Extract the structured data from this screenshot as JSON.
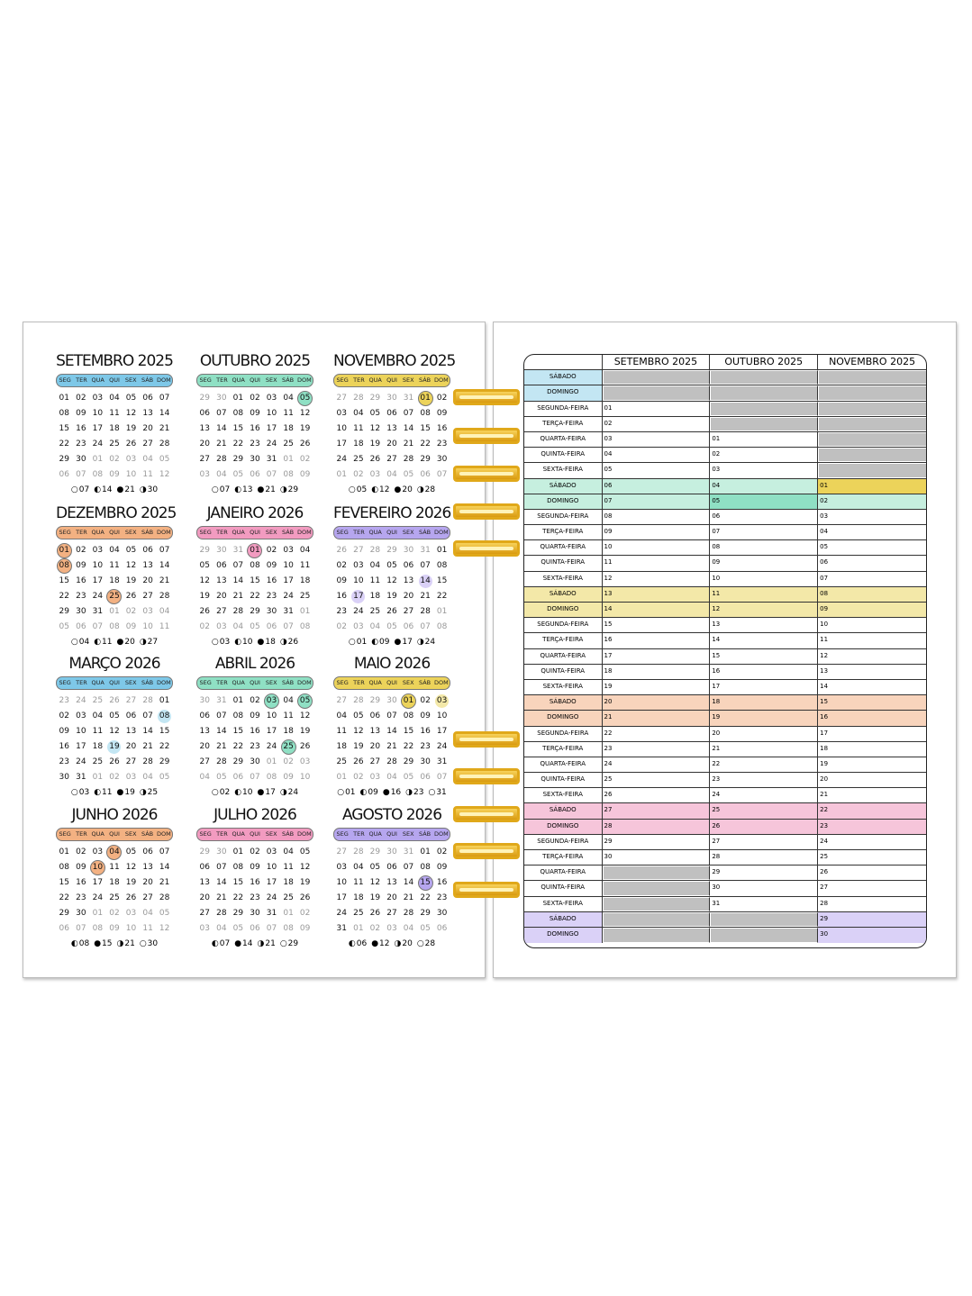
{
  "weekdays": [
    "SEG",
    "TER",
    "QUA",
    "QUI",
    "SEX",
    "SÁB",
    "DOM"
  ],
  "colors": {
    "blue": [
      "#7ec8e8",
      "#c3e6f3"
    ],
    "green": [
      "#8fe0c4",
      "#c6efdf"
    ],
    "yellow": [
      "#ecd35a",
      "#f3e8a8"
    ],
    "orange": [
      "#f3b182",
      "#f8d4bc"
    ],
    "pink": [
      "#f29bc0",
      "#f6c5da"
    ],
    "purple": [
      "#b6a6ef",
      "#dad1f7"
    ],
    "gray": "#c0c0c0"
  },
  "moon_icons": {
    "new": "○",
    "first": "◐",
    "full": "●",
    "last": "◑"
  },
  "months": [
    {
      "title": "SETEMBRO 2025",
      "color": "blue",
      "weeks": [
        "01 02 03 04 05 06 07",
        "08 09 10 11 12 13 14",
        "15 16 17 18 19 20 21",
        "22 23 24 25 26 27 28",
        "29 30 01 02 03 04 05",
        "06 07 08 09 10 11 12"
      ],
      "highlights": [],
      "moons": [
        [
          "new",
          "07"
        ],
        [
          "first",
          "14"
        ],
        [
          "full",
          "21"
        ],
        [
          "last",
          "30"
        ]
      ]
    },
    {
      "title": "OUTUBRO 2025",
      "color": "green",
      "weeks": [
        "29 30 01 02 03 04 05",
        "06 07 08 09 10 11 12",
        "13 14 15 16 17 18 19",
        "20 21 22 23 24 25 26",
        "27 28 29 30 31 01 02",
        "03 04 05 06 07 08 09"
      ],
      "highlights": [
        [
          "05",
          "h"
        ]
      ],
      "moons": [
        [
          "new",
          "07"
        ],
        [
          "first",
          "13"
        ],
        [
          "full",
          "21"
        ],
        [
          "last",
          "29"
        ]
      ]
    },
    {
      "title": "NOVEMBRO 2025",
      "color": "yellow",
      "weeks": [
        "27 28 29 30 31 01 02",
        "03 04 05 06 07 08 09",
        "10 11 12 13 14 15 16",
        "17 18 19 20 21 22 23",
        "24 25 26 27 28 29 30",
        "01 02 03 04 05 06 07"
      ],
      "highlights": [
        [
          "01",
          "h"
        ]
      ],
      "moons": [
        [
          "new",
          "05"
        ],
        [
          "first",
          "12"
        ],
        [
          "full",
          "20"
        ],
        [
          "last",
          "28"
        ]
      ]
    },
    {
      "title": "DEZEMBRO 2025",
      "color": "orange",
      "weeks": [
        "01 02 03 04 05 06 07",
        "08 09 10 11 12 13 14",
        "15 16 17 18 19 20 21",
        "22 23 24 25 26 27 28",
        "29 30 31 01 02 03 04",
        "05 06 07 08 09 10 11"
      ],
      "highlights": [
        [
          "01",
          "h"
        ],
        [
          "08",
          "h"
        ],
        [
          "25",
          "h"
        ]
      ],
      "moons": [
        [
          "new",
          "04"
        ],
        [
          "first",
          "11"
        ],
        [
          "full",
          "20"
        ],
        [
          "last",
          "27"
        ]
      ]
    },
    {
      "title": "JANEIRO 2026",
      "color": "pink",
      "weeks": [
        "29 30 31 01 02 03 04",
        "05 06 07 08 09 10 11",
        "12 13 14 15 16 17 18",
        "19 20 21 22 23 24 25",
        "26 27 28 29 30 31 01",
        "02 03 04 05 06 07 08"
      ],
      "highlights": [
        [
          "01",
          "h"
        ]
      ],
      "moons": [
        [
          "new",
          "03"
        ],
        [
          "first",
          "10"
        ],
        [
          "full",
          "18"
        ],
        [
          "last",
          "26"
        ]
      ]
    },
    {
      "title": "FEVEREIRO 2026",
      "color": "purple",
      "weeks": [
        "26 27 28 29 30 31 01",
        "02 03 04 05 06 07 08",
        "09 10 11 12 13 14 15",
        "16 17 18 19 20 21 22",
        "23 24 25 26 27 28 01",
        "02 03 04 05 06 07 08"
      ],
      "highlights": [
        [
          "14",
          "l"
        ],
        [
          "17",
          "l"
        ]
      ],
      "moons": [
        [
          "new",
          "01"
        ],
        [
          "first",
          "09"
        ],
        [
          "full",
          "17"
        ],
        [
          "last",
          "24"
        ]
      ]
    },
    {
      "title": "MARÇO 2026",
      "color": "blue",
      "weeks": [
        "23 24 25 26 27 28 01",
        "02 03 04 05 06 07 08",
        "09 10 11 12 13 14 15",
        "16 17 18 19 20 21 22",
        "23 24 25 26 27 28 29",
        "30 31 01 02 03 04 05"
      ],
      "highlights": [
        [
          "08",
          "l"
        ],
        [
          "19",
          "l"
        ]
      ],
      "moons": [
        [
          "new",
          "03"
        ],
        [
          "first",
          "11"
        ],
        [
          "full",
          "19"
        ],
        [
          "last",
          "25"
        ]
      ]
    },
    {
      "title": "ABRIL 2026",
      "color": "green",
      "weeks": [
        "30 31 01 02 03 04 05",
        "06 07 08 09 10 11 12",
        "13 14 15 16 17 18 19",
        "20 21 22 23 24 25 26",
        "27 28 29 30 01 02 03",
        "04 05 06 07 08 09 10"
      ],
      "highlights": [
        [
          "03",
          "h"
        ],
        [
          "05",
          "h"
        ],
        [
          "25",
          "h"
        ]
      ],
      "moons": [
        [
          "new",
          "02"
        ],
        [
          "first",
          "10"
        ],
        [
          "full",
          "17"
        ],
        [
          "last",
          "24"
        ]
      ]
    },
    {
      "title": "MAIO 2026",
      "color": "yellow",
      "weeks": [
        "27 28 29 30 01 02 03",
        "04 05 06 07 08 09 10",
        "11 12 13 14 15 16 17",
        "18 19 20 21 22 23 24",
        "25 26 27 28 29 30 31",
        "01 02 03 04 05 06 07"
      ],
      "highlights": [
        [
          "01",
          "h"
        ],
        [
          "03",
          "l"
        ]
      ],
      "moons": [
        [
          "new",
          "01"
        ],
        [
          "first",
          "09"
        ],
        [
          "full",
          "16"
        ],
        [
          "last",
          "23"
        ],
        [
          "new",
          "31"
        ]
      ]
    },
    {
      "title": "JUNHO 2026",
      "color": "orange",
      "weeks": [
        "01 02 03 04 05 06 07",
        "08 09 10 11 12 13 14",
        "15 16 17 18 19 20 21",
        "22 23 24 25 26 27 28",
        "29 30 01 02 03 04 05",
        "06 07 08 09 10 11 12"
      ],
      "highlights": [
        [
          "04",
          "h"
        ],
        [
          "10",
          "h"
        ]
      ],
      "moons": [
        [
          "first",
          "08"
        ],
        [
          "full",
          "15"
        ],
        [
          "last",
          "21"
        ],
        [
          "new",
          "30"
        ]
      ]
    },
    {
      "title": "JULHO 2026",
      "color": "pink",
      "weeks": [
        "29 30 01 02 03 04 05",
        "06 07 08 09 10 11 12",
        "13 14 15 16 17 18 19",
        "20 21 22 23 24 25 26",
        "27 28 29 30 31 01 02",
        "03 04 05 06 07 08 09"
      ],
      "highlights": [],
      "moons": [
        [
          "first",
          "07"
        ],
        [
          "full",
          "14"
        ],
        [
          "last",
          "21"
        ],
        [
          "new",
          "29"
        ]
      ]
    },
    {
      "title": "AGOSTO 2026",
      "color": "purple",
      "weeks": [
        "27 28 29 30 31 01 02",
        "03 04 05 06 07 08 09",
        "10 11 12 13 14 15 16",
        "17 18 19 20 21 22 23",
        "24 25 26 27 28 29 30",
        "31 01 02 03 04 05 06"
      ],
      "highlights": [
        [
          "15",
          "h"
        ]
      ],
      "moons": [
        [
          "first",
          "06"
        ],
        [
          "full",
          "12"
        ],
        [
          "last",
          "20"
        ],
        [
          "new",
          "28"
        ]
      ]
    }
  ],
  "table": {
    "columns": [
      "SETEMBRO 2025",
      "OUTUBRO 2025",
      "NOVEMBRO 2025"
    ],
    "highlight_cells": [
      [
        "05",
        1,
        "green"
      ],
      [
        "01",
        2,
        "yellow"
      ]
    ],
    "rows": [
      {
        "label": "SÁBADO",
        "band": "blue",
        "cells": [
          "",
          "",
          ""
        ]
      },
      {
        "label": "DOMINGO",
        "band": "blue",
        "cells": [
          "",
          "",
          ""
        ]
      },
      {
        "label": "SEGUNDA-FEIRA",
        "cells": [
          "01",
          "",
          ""
        ]
      },
      {
        "label": "TERÇA-FEIRA",
        "cells": [
          "02",
          "",
          ""
        ]
      },
      {
        "label": "QUARTA-FEIRA",
        "cells": [
          "03",
          "01",
          ""
        ]
      },
      {
        "label": "QUINTA-FEIRA",
        "cells": [
          "04",
          "02",
          ""
        ]
      },
      {
        "label": "SEXTA-FEIRA",
        "cells": [
          "05",
          "03",
          ""
        ]
      },
      {
        "label": "SÁBADO",
        "band": "green",
        "cells": [
          "06",
          "04",
          "01"
        ]
      },
      {
        "label": "DOMINGO",
        "band": "green",
        "cells": [
          "07",
          "05",
          "02"
        ]
      },
      {
        "label": "SEGUNDA-FEIRA",
        "cells": [
          "08",
          "06",
          "03"
        ]
      },
      {
        "label": "TERÇA-FEIRA",
        "cells": [
          "09",
          "07",
          "04"
        ]
      },
      {
        "label": "QUARTA-FEIRA",
        "cells": [
          "10",
          "08",
          "05"
        ]
      },
      {
        "label": "QUINTA-FEIRA",
        "cells": [
          "11",
          "09",
          "06"
        ]
      },
      {
        "label": "SEXTA-FEIRA",
        "cells": [
          "12",
          "10",
          "07"
        ]
      },
      {
        "label": "SÁBADO",
        "band": "yellow",
        "cells": [
          "13",
          "11",
          "08"
        ]
      },
      {
        "label": "DOMINGO",
        "band": "yellow",
        "cells": [
          "14",
          "12",
          "09"
        ]
      },
      {
        "label": "SEGUNDA-FEIRA",
        "cells": [
          "15",
          "13",
          "10"
        ]
      },
      {
        "label": "TERÇA-FEIRA",
        "cells": [
          "16",
          "14",
          "11"
        ]
      },
      {
        "label": "QUARTA-FEIRA",
        "cells": [
          "17",
          "15",
          "12"
        ]
      },
      {
        "label": "QUINTA-FEIRA",
        "cells": [
          "18",
          "16",
          "13"
        ]
      },
      {
        "label": "SEXTA-FEIRA",
        "cells": [
          "19",
          "17",
          "14"
        ]
      },
      {
        "label": "SÁBADO",
        "band": "orange",
        "cells": [
          "20",
          "18",
          "15"
        ]
      },
      {
        "label": "DOMINGO",
        "band": "orange",
        "cells": [
          "21",
          "19",
          "16"
        ]
      },
      {
        "label": "SEGUNDA-FEIRA",
        "cells": [
          "22",
          "20",
          "17"
        ]
      },
      {
        "label": "TERÇA-FEIRA",
        "cells": [
          "23",
          "21",
          "18"
        ]
      },
      {
        "label": "QUARTA-FEIRA",
        "cells": [
          "24",
          "22",
          "19"
        ]
      },
      {
        "label": "QUINTA-FEIRA",
        "cells": [
          "25",
          "23",
          "20"
        ]
      },
      {
        "label": "SEXTA-FEIRA",
        "cells": [
          "26",
          "24",
          "21"
        ]
      },
      {
        "label": "SÁBADO",
        "band": "pink",
        "cells": [
          "27",
          "25",
          "22"
        ]
      },
      {
        "label": "DOMINGO",
        "band": "pink",
        "cells": [
          "28",
          "26",
          "23"
        ]
      },
      {
        "label": "SEGUNDA-FEIRA",
        "cells": [
          "29",
          "27",
          "24"
        ]
      },
      {
        "label": "TERÇA-FEIRA",
        "cells": [
          "30",
          "28",
          "25"
        ]
      },
      {
        "label": "QUARTA-FEIRA",
        "cells": [
          "",
          "29",
          "26"
        ]
      },
      {
        "label": "QUINTA-FEIRA",
        "cells": [
          "",
          "30",
          "27"
        ]
      },
      {
        "label": "SEXTA-FEIRA",
        "cells": [
          "",
          "31",
          "28"
        ]
      },
      {
        "label": "SÁBADO",
        "band": "purple",
        "cells": [
          "",
          "",
          "29"
        ]
      },
      {
        "label": "DOMINGO",
        "band": "purple",
        "cells": [
          "",
          "",
          "30"
        ]
      }
    ]
  }
}
